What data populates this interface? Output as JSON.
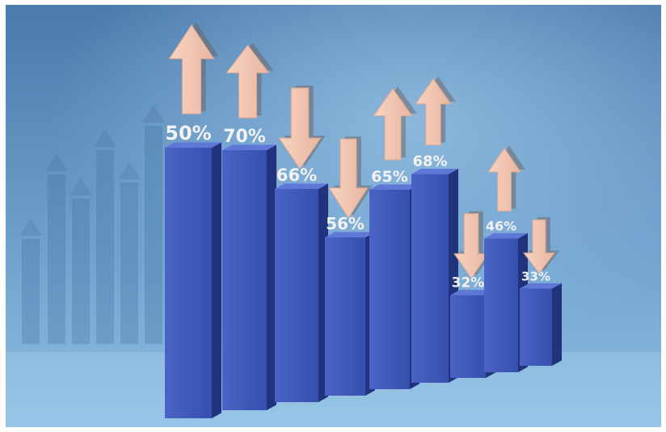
{
  "chart_data": {
    "type": "bar",
    "categories": [
      "",
      "",
      "",
      "",
      "",
      "",
      "",
      "",
      ""
    ],
    "values": [
      50,
      70,
      66,
      56,
      65,
      68,
      32,
      46,
      33
    ],
    "value_labels": [
      "50%",
      "70%",
      "66%",
      "56%",
      "65%",
      "68%",
      "32%",
      "46%",
      "33%"
    ],
    "trend": [
      "up",
      "up",
      "down",
      "down",
      "up",
      "up",
      "down",
      "up",
      "down"
    ],
    "title": "",
    "xlabel": "",
    "ylabel": "",
    "ylim": [
      0,
      100
    ],
    "grid": false,
    "legend": "none",
    "colors": {
      "background_light": "#7fb0d8",
      "background_dark": "#3f6f9f",
      "bar_front": "#3f58b8",
      "bar_side": "#22337d",
      "bar_top": "#5f78d8",
      "arrow": "#f3c8b4",
      "label_text": "#f2f2f2"
    }
  }
}
